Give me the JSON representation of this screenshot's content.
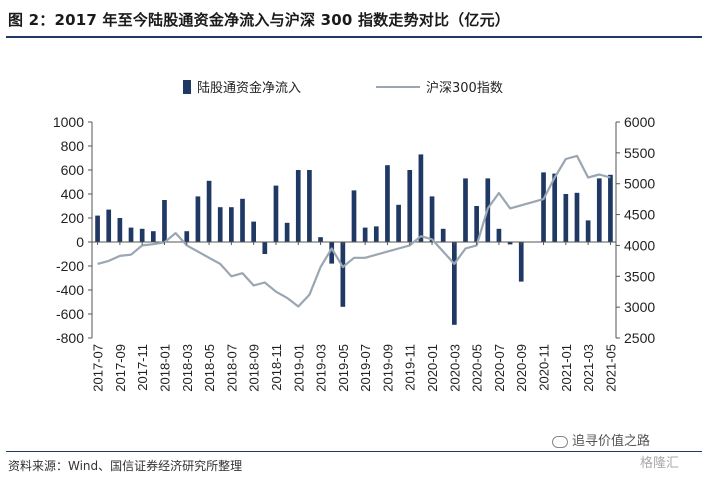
{
  "title": "图 2：2017 年至今陆股通资金净流入与沪深 300 指数走势对比（亿元）",
  "source": "资料来源：Wind、国信证券经济研究所整理",
  "watermark": "追寻价值之路",
  "brand": "格隆汇",
  "colors": {
    "bar": "#1f3864",
    "line": "#9aa6b2",
    "axis": "#555555",
    "rule": "#1f3864"
  },
  "chart_data": {
    "type": "bar",
    "legend_position": "top",
    "grid": false,
    "left_axis": {
      "ylim": [
        -800,
        1000
      ],
      "ticks": [
        "1000",
        "800",
        "600",
        "400",
        "200",
        "0",
        "-200",
        "-400",
        "-600",
        "-800"
      ]
    },
    "right_axis": {
      "ylim": [
        2500,
        6000
      ],
      "ticks": [
        "6000",
        "5500",
        "5000",
        "4500",
        "4000",
        "3500",
        "3000",
        "2500"
      ]
    },
    "x_tick_labels": [
      "2017-07",
      "2017-09",
      "2017-11",
      "2018-01",
      "2018-03",
      "2018-05",
      "2018-07",
      "2018-09",
      "2018-11",
      "2019-01",
      "2019-03",
      "2019-05",
      "2019-07",
      "2019-09",
      "2019-11",
      "2020-01",
      "2020-03",
      "2020-05",
      "2020-07",
      "2020-09",
      "2020-11",
      "2021-01",
      "2021-03",
      "2021-05"
    ],
    "series": [
      {
        "name": "陆股通资金净流入",
        "type": "bar",
        "axis": "left",
        "values": [
          220,
          270,
          200,
          120,
          110,
          90,
          350,
          0,
          90,
          380,
          510,
          290,
          290,
          360,
          170,
          -100,
          470,
          160,
          600,
          600,
          40,
          -180,
          -540,
          430,
          120,
          130,
          640,
          310,
          600,
          730,
          380,
          110,
          -690,
          530,
          300,
          530,
          110,
          -20,
          -330,
          0,
          580,
          570,
          400,
          410,
          180,
          530,
          560
        ]
      },
      {
        "name": "沪深300指数",
        "type": "line",
        "axis": "right",
        "values": [
          3700,
          3750,
          3830,
          3850,
          4000,
          4020,
          4050,
          4200,
          4000,
          3900,
          3800,
          3700,
          3500,
          3550,
          3350,
          3400,
          3250,
          3150,
          3010,
          3200,
          3650,
          3950,
          3650,
          3800,
          3800,
          3850,
          3900,
          3950,
          4000,
          4150,
          4100,
          3900,
          3700,
          3950,
          4000,
          4600,
          4850,
          4600,
          4650,
          4700,
          4750,
          5100,
          5400,
          5450,
          5100,
          5150,
          5100
        ]
      }
    ]
  }
}
